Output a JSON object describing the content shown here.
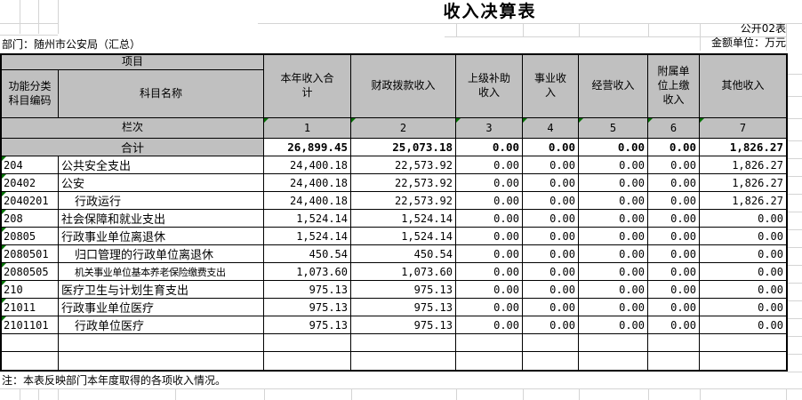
{
  "page": {
    "title": "收入决算表",
    "sheet_tag": "公开02表",
    "department_label": "部门：随州市公安局（汇总）",
    "unit_label": "金额单位：万元",
    "note": "注：本表反映部门本年度取得的各项收入情况。"
  },
  "table": {
    "project_header": "项目",
    "columns": {
      "code": "功能分类\n科目编码",
      "name": "科目名称",
      "year_total": "本年收入合\n计",
      "fiscal": "财政拨款收入",
      "superior_subsidy": "上级补助\n收入",
      "business": "事业收\n入",
      "operating": "经营收入",
      "affiliate_remit": "附属单\n位上缴\n收入",
      "other": "其他收入"
    },
    "lanci": {
      "label": "栏次",
      "numbers": [
        "1",
        "2",
        "3",
        "4",
        "5",
        "6",
        "7"
      ]
    },
    "total_row": {
      "label": "合计",
      "values": [
        "26,899.45",
        "25,073.18",
        "0.00",
        "0.00",
        "0.00",
        "0.00",
        "1,826.27"
      ]
    },
    "rows": [
      {
        "code": "204",
        "name": "公共安全支出",
        "indent": 0,
        "small": 0,
        "values": [
          "24,400.18",
          "22,573.92",
          "0.00",
          "0.00",
          "0.00",
          "0.00",
          "1,826.27"
        ]
      },
      {
        "code": "20402",
        "name": "公安",
        "indent": 0,
        "small": 0,
        "values": [
          "24,400.18",
          "22,573.92",
          "0.00",
          "0.00",
          "0.00",
          "0.00",
          "1,826.27"
        ]
      },
      {
        "code": "2040201",
        "name": "行政运行",
        "indent": 1,
        "small": 0,
        "values": [
          "24,400.18",
          "22,573.92",
          "0.00",
          "0.00",
          "0.00",
          "0.00",
          "1,826.27"
        ]
      },
      {
        "code": "208",
        "name": "社会保障和就业支出",
        "indent": 0,
        "small": 0,
        "values": [
          "1,524.14",
          "1,524.14",
          "0.00",
          "0.00",
          "0.00",
          "0.00",
          "0.00"
        ]
      },
      {
        "code": "20805",
        "name": "行政事业单位离退休",
        "indent": 0,
        "small": 0,
        "values": [
          "1,524.14",
          "1,524.14",
          "0.00",
          "0.00",
          "0.00",
          "0.00",
          "0.00"
        ]
      },
      {
        "code": "2080501",
        "name": "归口管理的行政单位离退休",
        "indent": 1,
        "small": 0,
        "values": [
          "450.54",
          "450.54",
          "0.00",
          "0.00",
          "0.00",
          "0.00",
          "0.00"
        ]
      },
      {
        "code": "2080505",
        "name": "机关事业单位基本养老保险缴费支出",
        "indent": 1,
        "small": 1,
        "values": [
          "1,073.60",
          "1,073.60",
          "0.00",
          "0.00",
          "0.00",
          "0.00",
          "0.00"
        ]
      },
      {
        "code": "210",
        "name": "医疗卫生与计划生育支出",
        "indent": 0,
        "small": 0,
        "values": [
          "975.13",
          "975.13",
          "0.00",
          "0.00",
          "0.00",
          "0.00",
          "0.00"
        ]
      },
      {
        "code": "21011",
        "name": "行政事业单位医疗",
        "indent": 0,
        "small": 0,
        "values": [
          "975.13",
          "975.13",
          "0.00",
          "0.00",
          "0.00",
          "0.00",
          "0.00"
        ]
      },
      {
        "code": "2101101",
        "name": "行政单位医疗",
        "indent": 1,
        "small": 0,
        "values": [
          "975.13",
          "975.13",
          "0.00",
          "0.00",
          "0.00",
          "0.00",
          "0.00"
        ]
      },
      {
        "code": "",
        "name": "",
        "indent": 0,
        "small": 0,
        "values": [
          "",
          "",
          "",
          "",
          "",
          "",
          ""
        ]
      },
      {
        "code": "",
        "name": "",
        "indent": 0,
        "small": 0,
        "values": [
          "",
          "",
          "",
          "",
          "",
          "",
          ""
        ]
      }
    ]
  },
  "colors": {
    "header_bg": "#c0c0c0",
    "flag_green": "#017101",
    "grid_faint": "#d4d4d4",
    "border": "#000000"
  }
}
